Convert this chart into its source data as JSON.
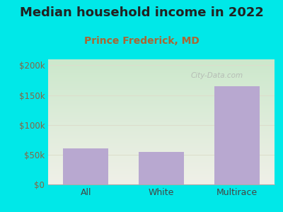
{
  "title": "Median household income in 2022",
  "subtitle": "Prince Frederick, MD",
  "categories": [
    "All",
    "White",
    "Multirace"
  ],
  "values": [
    60000,
    55000,
    165000
  ],
  "bar_color": "#b8a8d0",
  "title_color": "#222222",
  "subtitle_color": "#aa6633",
  "bg_color": "#00e8e8",
  "plot_bg_top": "#cce8cc",
  "plot_bg_bottom": "#f0f0e8",
  "yticks": [
    0,
    50000,
    100000,
    150000,
    200000
  ],
  "ytick_labels": [
    "$0",
    "$50k",
    "$100k",
    "$150k",
    "$200k"
  ],
  "ylim": [
    0,
    210000
  ],
  "watermark": "City-Data.com",
  "xlabel_color": "#444444",
  "ytick_color": "#886644",
  "grid_color": "#ddddcc",
  "title_fontsize": 13,
  "subtitle_fontsize": 10
}
